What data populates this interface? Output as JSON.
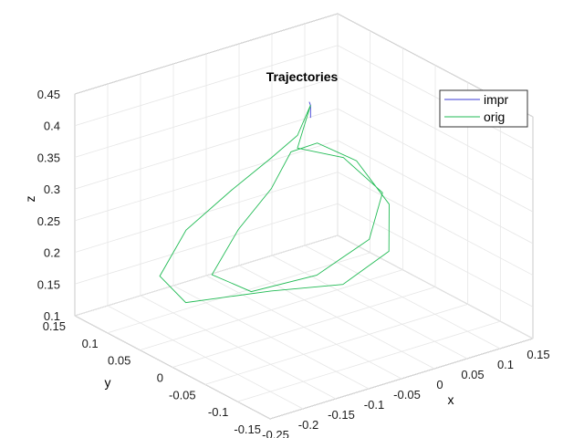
{
  "chart_data": {
    "type": "line",
    "projection": "3d",
    "title": "Trajectories",
    "xlabel": "x",
    "ylabel": "y",
    "zlabel": "z",
    "xlim": [
      -0.25,
      0.15
    ],
    "ylim": [
      -0.15,
      0.15
    ],
    "zlim": [
      0.1,
      0.45
    ],
    "x_ticks": [
      "-0.25",
      "-0.2",
      "-0.15",
      "-0.1",
      "-0.05",
      "0",
      "0.05",
      "0.1",
      "0.15"
    ],
    "y_ticks": [
      "-0.15",
      "-0.1",
      "-0.05",
      "0",
      "0.05",
      "0.1",
      "0.15"
    ],
    "z_ticks": [
      "0.1",
      "0.15",
      "0.2",
      "0.25",
      "0.3",
      "0.35",
      "0.4",
      "0.45"
    ],
    "grid": true,
    "legend_position": "top-right",
    "series": [
      {
        "name": "impr",
        "color": "#3b3bd6",
        "points": [
          [
            -0.02,
            0.02,
            0.41
          ],
          [
            -0.02,
            0.02,
            0.43
          ],
          [
            -0.021,
            0.021,
            0.435
          ]
        ]
      },
      {
        "name": "orig",
        "color": "#22bb55",
        "points": [
          [
            -0.02,
            0.02,
            0.43
          ],
          [
            -0.03,
            0.03,
            0.38
          ],
          [
            -0.05,
            0.05,
            0.34
          ],
          [
            -0.1,
            0.06,
            0.3
          ],
          [
            -0.16,
            0.07,
            0.25
          ],
          [
            -0.2,
            0.07,
            0.19
          ],
          [
            -0.2,
            0.03,
            0.17
          ],
          [
            -0.12,
            -0.02,
            0.19
          ],
          [
            -0.05,
            -0.06,
            0.2
          ],
          [
            0.02,
            -0.06,
            0.23
          ],
          [
            0.06,
            -0.02,
            0.27
          ],
          [
            0.05,
            0.02,
            0.32
          ],
          [
            0.01,
            0.04,
            0.35
          ],
          [
            -0.02,
            0.05,
            0.34
          ],
          [
            -0.06,
            0.04,
            0.3
          ],
          [
            -0.12,
            0.03,
            0.26
          ],
          [
            -0.17,
            0.02,
            0.21
          ],
          [
            -0.14,
            -0.01,
            0.19
          ],
          [
            -0.07,
            -0.04,
            0.21
          ],
          [
            0.0,
            -0.05,
            0.25
          ],
          [
            0.04,
            -0.03,
            0.3
          ],
          [
            0.02,
            0.01,
            0.34
          ],
          [
            -0.03,
            0.03,
            0.36
          ],
          [
            -0.02,
            0.02,
            0.43
          ]
        ]
      }
    ]
  }
}
